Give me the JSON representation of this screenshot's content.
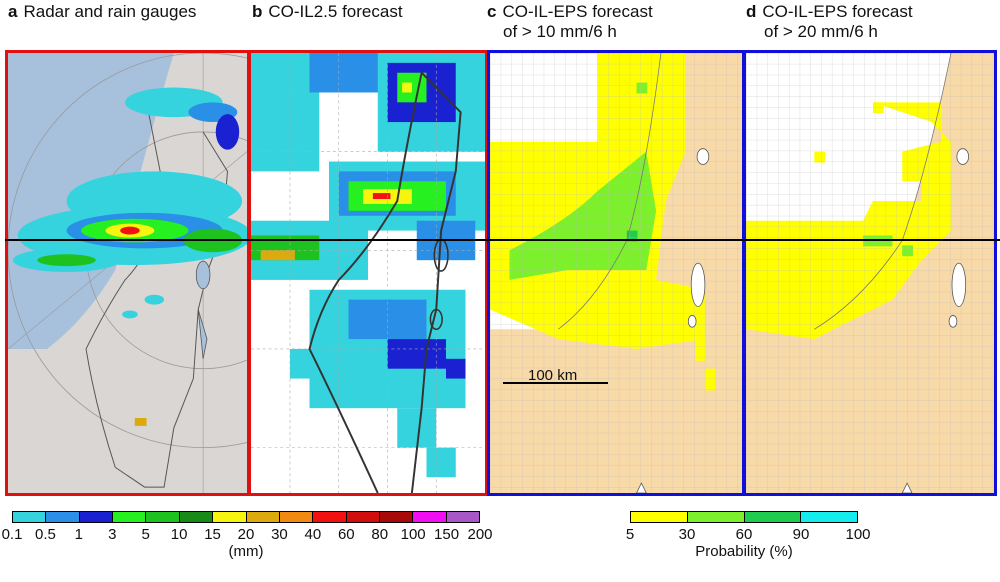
{
  "panels": [
    {
      "letter": "a",
      "title": "Radar and rain gauges",
      "subtitle": ""
    },
    {
      "letter": "b",
      "title": "CO-IL2.5 forecast",
      "subtitle": ""
    },
    {
      "letter": "c",
      "title": "CO-IL-EPS forecast",
      "subtitle": "of > 10 mm/6 h"
    },
    {
      "letter": "d",
      "title": "CO-IL-EPS forecast",
      "subtitle": "of > 20 mm/6 h"
    }
  ],
  "scale_bar": {
    "label": "100 km"
  },
  "rain_legend": {
    "ticks": [
      "0.1",
      "0.5",
      "1",
      "3",
      "5",
      "10",
      "15",
      "20",
      "30",
      "40",
      "60",
      "80",
      "100",
      "150",
      "200"
    ],
    "unit": "(mm)",
    "colors": [
      "#35d3de",
      "#2a8fe6",
      "#1a21d1",
      "#26f01f",
      "#1ec21e",
      "#178a17",
      "#f5f510",
      "#dcaa0c",
      "#f08a10",
      "#f21010",
      "#d10d0d",
      "#a80a0a",
      "#f20ef2",
      "#a858c6"
    ]
  },
  "prob_legend": {
    "ticks": [
      "5",
      "30",
      "60",
      "90",
      "100"
    ],
    "unit": "Probability (%)",
    "colors": [
      "#ffff00",
      "#7cf02a",
      "#1fcc50",
      "#14ecee"
    ]
  },
  "frame_colors": {
    "a": "#e01010",
    "b": "#e01010",
    "c": "#1010d8",
    "d": "#1010d8"
  }
}
